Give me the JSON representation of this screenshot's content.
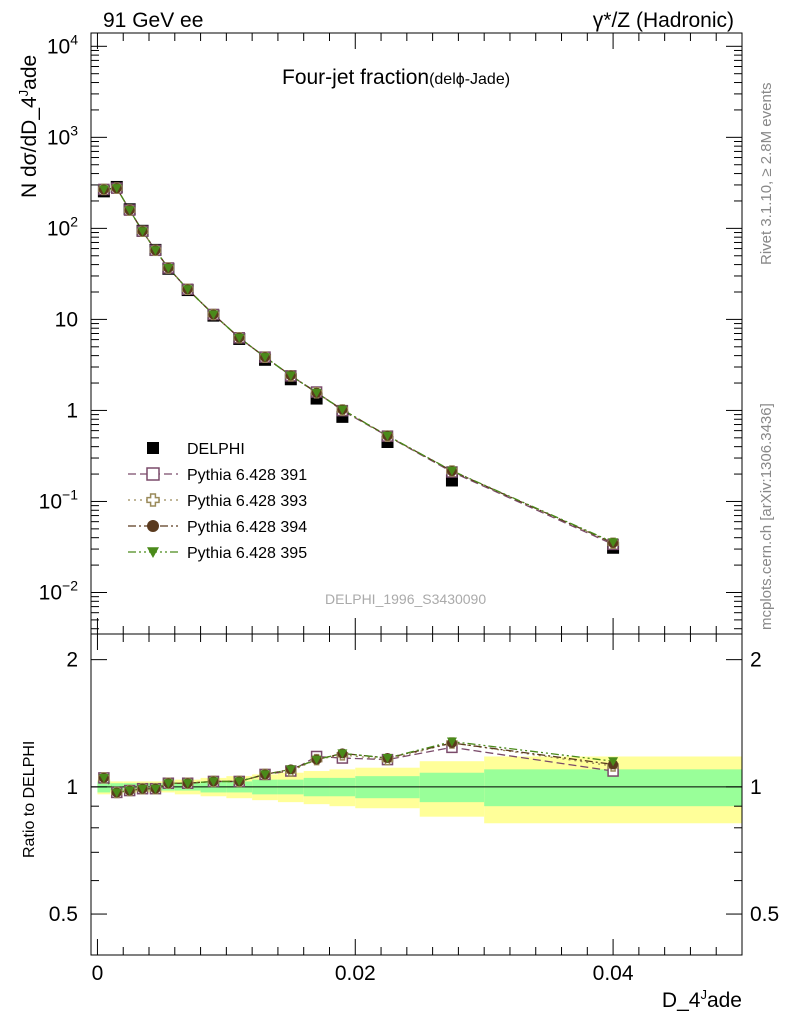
{
  "header": {
    "left": "91 GeV ee",
    "right_prefix": "γ*/Z",
    "right_suffix": " (Hadronic)"
  },
  "side_text": {
    "rivet": "Rivet 3.1.10, ≥ 2.8M events",
    "source": "mcplots.cern.ch [arXiv:1306.3436]"
  },
  "chart_data": {
    "type": "scatter",
    "title": "Four-jet fraction",
    "subtitle": "(delϕ-Jade)",
    "analysis_id": "DELPHI_1996_S3430090",
    "xlabel_main": "D_4",
    "xlabel_sup": "J",
    "xlabel_tail": "ade",
    "ylabel_main": "N dσ/dD_4",
    "ylabel_sup": "J",
    "ylabel_tail": "ade",
    "ratio_ylabel": "Ratio to DELPHI",
    "log_y": true,
    "xlim": [
      -0.0005,
      0.05
    ],
    "ylim": [
      0.0035,
      14000
    ],
    "ratio_ylim": [
      0.4,
      2.3
    ],
    "x_ticks": [
      0,
      0.02,
      0.04
    ],
    "x_tick_labels": [
      "0",
      "0.02",
      "0.04"
    ],
    "y_ticks": [
      {
        "v": 0.01,
        "base": "10",
        "exp": "−2"
      },
      {
        "v": 0.1,
        "base": "10",
        "exp": "−1"
      },
      {
        "v": 1,
        "base": "1",
        "exp": ""
      },
      {
        "v": 10,
        "base": "10",
        "exp": ""
      },
      {
        "v": 100,
        "base": "10",
        "exp": "2"
      },
      {
        "v": 1000,
        "base": "10",
        "exp": "3"
      },
      {
        "v": 10000,
        "base": "10",
        "exp": "4"
      }
    ],
    "ratio_ticks": [
      0.5,
      1,
      2
    ],
    "ratio_tick_labels": [
      "0.5",
      "1",
      "2"
    ],
    "x": [
      0.0005,
      0.0015,
      0.0025,
      0.0035,
      0.0045,
      0.0055,
      0.007,
      0.009,
      0.011,
      0.013,
      0.015,
      0.017,
      0.019,
      0.0225,
      0.0275,
      0.04
    ],
    "bin_edges": [
      0,
      0.001,
      0.002,
      0.003,
      0.004,
      0.005,
      0.006,
      0.008,
      0.01,
      0.012,
      0.014,
      0.016,
      0.018,
      0.02,
      0.025,
      0.03,
      0.05
    ],
    "band_inner": [
      0.03,
      0.02,
      0.02,
      0.02,
      0.02,
      0.02,
      0.02,
      0.03,
      0.03,
      0.04,
      0.04,
      0.05,
      0.05,
      0.06,
      0.08,
      0.1
    ],
    "band_outer": [
      0.04,
      0.03,
      0.03,
      0.03,
      0.03,
      0.03,
      0.04,
      0.05,
      0.06,
      0.07,
      0.08,
      0.09,
      0.1,
      0.11,
      0.15,
      0.18
    ],
    "series": [
      {
        "name": "DELPHI",
        "color": "#000000",
        "marker": "square-filled",
        "line": "none",
        "values": [
          255,
          285,
          162,
          94,
          58,
          36,
          21,
          11,
          6.1,
          3.6,
          2.2,
          1.35,
          0.85,
          0.45,
          0.17,
          0.031
        ]
      },
      {
        "name": "Pythia 6.428 391",
        "color": "#7a4a6a",
        "marker": "square-open",
        "line": "dash",
        "ratio": [
          1.05,
          0.97,
          0.98,
          0.99,
          0.99,
          1.02,
          1.02,
          1.03,
          1.03,
          1.07,
          1.09,
          1.18,
          1.17,
          1.16,
          1.24,
          1.09
        ]
      },
      {
        "name": "Pythia 6.428 393",
        "color": "#9a8a5a",
        "marker": "cross-open",
        "line": "dot",
        "ratio": [
          1.05,
          0.97,
          0.98,
          0.99,
          0.99,
          1.02,
          1.02,
          1.03,
          1.03,
          1.07,
          1.09,
          1.16,
          1.19,
          1.16,
          1.27,
          1.12
        ]
      },
      {
        "name": "Pythia 6.428 394",
        "color": "#5a3a1e",
        "marker": "circle-filled",
        "line": "dashdot",
        "ratio": [
          1.05,
          0.97,
          0.98,
          0.99,
          0.99,
          1.02,
          1.02,
          1.03,
          1.03,
          1.07,
          1.1,
          1.16,
          1.2,
          1.17,
          1.27,
          1.13
        ]
      },
      {
        "name": "Pythia 6.428 395",
        "color": "#4a8a1a",
        "marker": "triangle-down-filled",
        "line": "dashdotdot",
        "ratio": [
          1.05,
          0.97,
          0.98,
          0.99,
          0.99,
          1.02,
          1.02,
          1.03,
          1.03,
          1.07,
          1.1,
          1.16,
          1.2,
          1.17,
          1.28,
          1.15
        ]
      }
    ],
    "band_colors": {
      "inner": "#99ff99",
      "outer": "#ffff99"
    },
    "grid": false,
    "legend_placement": "bottom-left"
  }
}
